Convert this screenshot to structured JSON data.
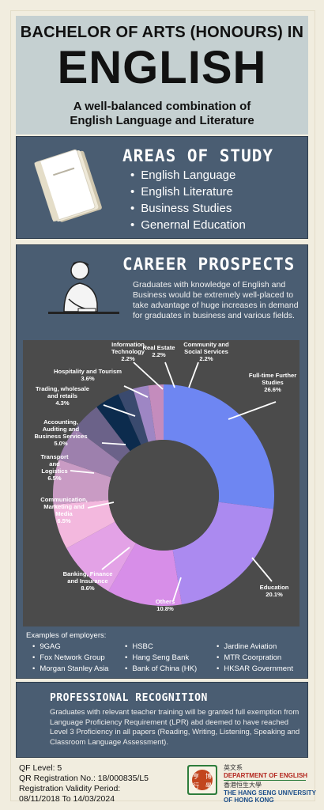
{
  "header": {
    "line1": "BACHELOR OF ARTS (HONOURS) IN",
    "line2": "ENGLISH",
    "subtitle_l1": "A well-balanced combination of",
    "subtitle_l2": "English Language and Literature"
  },
  "areas": {
    "title": "AREAS OF STUDY",
    "items": [
      "English Language",
      "English Literature",
      "Business Studies",
      "Genernal Education"
    ]
  },
  "career": {
    "title": "CAREER PROSPECTS",
    "text": "Graduates with knowledge of English and Business would be extremely well-placed to take advantage of huge increases in demand for graduates in business and various fields."
  },
  "chart_data": {
    "type": "pie",
    "donut": true,
    "slices": [
      {
        "label": "Full-time Further Studies",
        "value": 26.6,
        "color": "#6e86f2"
      },
      {
        "label": "Education",
        "value": 20.1,
        "color": "#ab8af0"
      },
      {
        "label": "Others",
        "value": 10.8,
        "color": "#d78ee8"
      },
      {
        "label": "Banking, Finance and Insurance",
        "value": 8.6,
        "color": "#e3a2e6"
      },
      {
        "label": "Communication, Marketing and Media",
        "value": 6.5,
        "color": "#f3b8de"
      },
      {
        "label": "Transport and Logistics",
        "value": 6.5,
        "color": "#c99bc4"
      },
      {
        "label": "Accounting, Auditing and Business Services",
        "value": 5.0,
        "color": "#9d80ad"
      },
      {
        "label": "Trading, wholesale and retails",
        "value": 4.3,
        "color": "#6b6289"
      },
      {
        "label": "Hospitality and Tourism",
        "value": 3.6,
        "color": "#0c2b4d"
      },
      {
        "label": "Information Technology",
        "value": 2.2,
        "color": "#3a4a6e"
      },
      {
        "label": "Real Estate",
        "value": 2.2,
        "color": "#9e86c4"
      },
      {
        "label": "Community and Social Services",
        "value": 2.2,
        "color": "#c48cbd"
      }
    ],
    "display_labels": [
      [
        "Full-time Further",
        "Studies",
        "26.6%"
      ],
      [
        "Education",
        "20.1%"
      ],
      [
        "Others",
        "10.8%"
      ],
      [
        "Banking, Finance",
        "and Insurance",
        "8.6%"
      ],
      [
        "Communication,",
        "Marketing and",
        "Media",
        "6.5%"
      ],
      [
        "Transport",
        "and",
        "Logistics",
        "6.5%"
      ],
      [
        "Accounting,",
        "Auditing and",
        "Business Services",
        "5.0%"
      ],
      [
        "Trading, wholesale",
        "and retails",
        "4.3%"
      ],
      [
        "Hospitality and Tourism",
        "3.6%"
      ],
      [
        "Information",
        "Technology",
        "2.2%"
      ],
      [
        "Real Estate",
        "2.2%"
      ],
      [
        "Community and",
        "Social Services",
        "2.2%"
      ]
    ]
  },
  "employers": {
    "title": "Examples of employers:",
    "col1": [
      "9GAG",
      "Fox Network Group",
      "Morgan Stanley Asia"
    ],
    "col2": [
      "HSBC",
      "Hang Seng Bank",
      "Bank of China (HK)"
    ],
    "col3": [
      "Jardine Aviation",
      "MTR Coorpration",
      "HKSAR Government"
    ]
  },
  "professional": {
    "title": "PROFESSIONAL RECOGNITION",
    "text": "Graduates with relevant teacher training will be granted full exemption from Language Proficiency Requirement (LPR) abd deemed to have reached Level 3 Proficiency in all papers (Reading, Writing, Listening, Speaking and Classroom Language Assessment)."
  },
  "footer": {
    "qf": "QF Level: 5",
    "reg": "QR Registration No.: 18/000835/L5",
    "validity_label": "Registration Validity Period:",
    "validity": "08/11/2018 To 14/03/2024",
    "dept_cn": "英文系",
    "dept_en": "DEPARTMENT OF ENGLISH",
    "uni_cn": "香港恒生大學",
    "uni_en_l1": "THE HANG SENG UNIVERSITY",
    "uni_en_l2": "OF HONG KONG",
    "seal_chars": [
      "亨",
      "博",
      "行",
      "學"
    ]
  }
}
